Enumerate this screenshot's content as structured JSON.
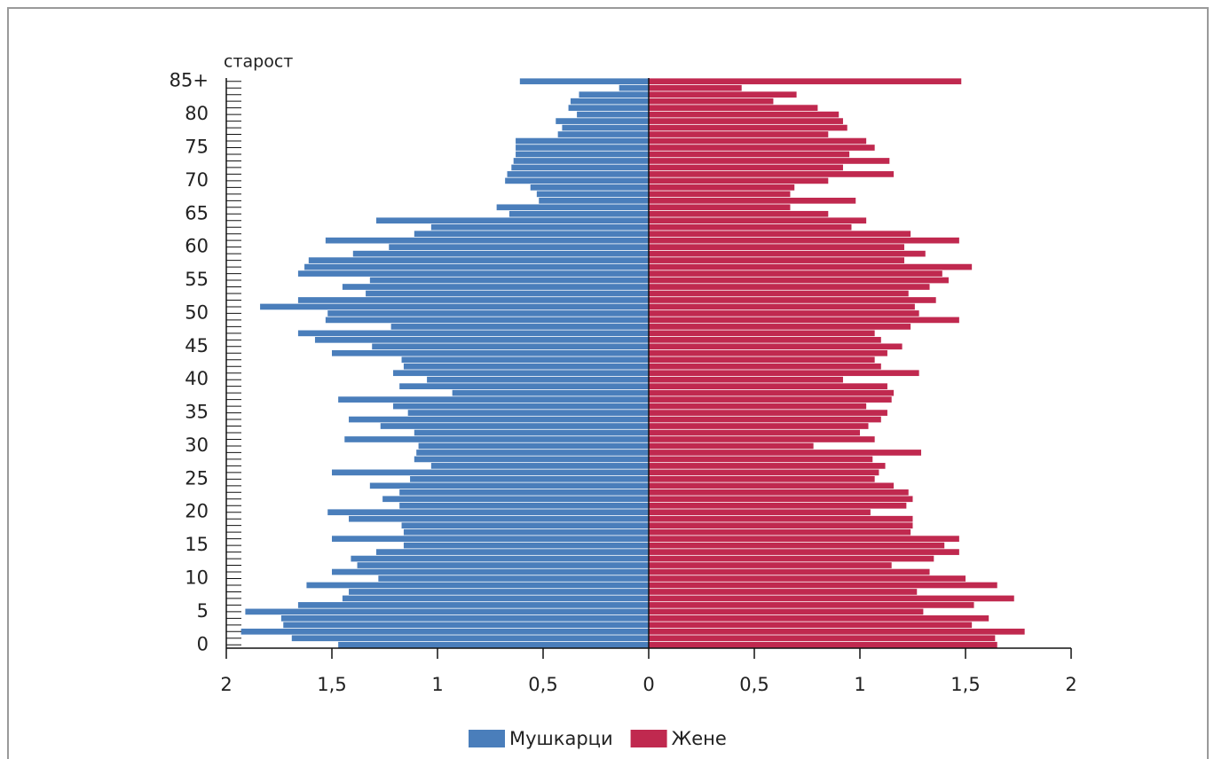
{
  "chart_data": {
    "type": "pyramid",
    "ylabel": "старост",
    "categories": [
      "0",
      null,
      null,
      null,
      null,
      "5",
      null,
      null,
      null,
      null,
      "10",
      null,
      null,
      null,
      null,
      "15",
      null,
      null,
      null,
      null,
      "20",
      null,
      null,
      null,
      null,
      "25",
      null,
      null,
      null,
      null,
      "30",
      null,
      null,
      null,
      null,
      "35",
      null,
      null,
      null,
      null,
      "40",
      null,
      null,
      null,
      null,
      "45",
      null,
      null,
      null,
      null,
      "50",
      null,
      null,
      null,
      null,
      "55",
      null,
      null,
      null,
      null,
      "60",
      null,
      null,
      null,
      null,
      "65",
      null,
      null,
      null,
      null,
      "70",
      null,
      null,
      null,
      null,
      "75",
      null,
      null,
      null,
      null,
      "80",
      null,
      null,
      null,
      null,
      "85+"
    ],
    "series": [
      {
        "name": "Мушкарци",
        "color": "#4a7ebb",
        "values": [
          1.47,
          1.69,
          1.93,
          1.73,
          1.74,
          1.91,
          1.66,
          1.45,
          1.42,
          1.62,
          1.28,
          1.5,
          1.38,
          1.41,
          1.29,
          1.16,
          1.5,
          1.16,
          1.17,
          1.42,
          1.52,
          1.18,
          1.26,
          1.18,
          1.32,
          1.13,
          1.5,
          1.03,
          1.11,
          1.1,
          1.09,
          1.44,
          1.11,
          1.27,
          1.42,
          1.14,
          1.21,
          1.47,
          0.93,
          1.18,
          1.05,
          1.21,
          1.16,
          1.17,
          1.5,
          1.31,
          1.58,
          1.66,
          1.22,
          1.53,
          1.52,
          1.84,
          1.66,
          1.34,
          1.45,
          1.32,
          1.66,
          1.63,
          1.61,
          1.4,
          1.23,
          1.53,
          1.11,
          1.03,
          1.29,
          0.66,
          0.72,
          0.52,
          0.53,
          0.56,
          0.68,
          0.67,
          0.65,
          0.64,
          0.63,
          0.63,
          0.63,
          0.43,
          0.41,
          0.44,
          0.34,
          0.38,
          0.37,
          0.33,
          0.14,
          0.61
        ]
      },
      {
        "name": "Жене",
        "color": "#c0294f",
        "values": [
          1.65,
          1.64,
          1.78,
          1.53,
          1.61,
          1.3,
          1.54,
          1.73,
          1.27,
          1.65,
          1.5,
          1.33,
          1.15,
          1.35,
          1.47,
          1.4,
          1.47,
          1.24,
          1.25,
          1.25,
          1.05,
          1.22,
          1.25,
          1.23,
          1.16,
          1.07,
          1.09,
          1.12,
          1.06,
          1.29,
          0.78,
          1.07,
          1.0,
          1.04,
          1.1,
          1.13,
          1.03,
          1.15,
          1.16,
          1.13,
          0.92,
          1.28,
          1.1,
          1.07,
          1.13,
          1.2,
          1.1,
          1.07,
          1.24,
          1.47,
          1.28,
          1.26,
          1.36,
          1.23,
          1.33,
          1.42,
          1.39,
          1.53,
          1.21,
          1.31,
          1.21,
          1.47,
          1.24,
          0.96,
          1.03,
          0.85,
          0.67,
          0.98,
          0.67,
          0.69,
          0.85,
          1.16,
          0.92,
          1.14,
          0.95,
          1.07,
          1.03,
          0.85,
          0.94,
          0.92,
          0.9,
          0.8,
          0.59,
          0.7,
          0.44,
          1.48
        ]
      }
    ],
    "xlim": [
      0,
      2
    ],
    "xticks": [
      0,
      {
        "value": 0.5,
        "label": "0,5"
      },
      1,
      {
        "value": 1.5,
        "label": "1,5"
      },
      2
    ],
    "legend": "bottom"
  }
}
